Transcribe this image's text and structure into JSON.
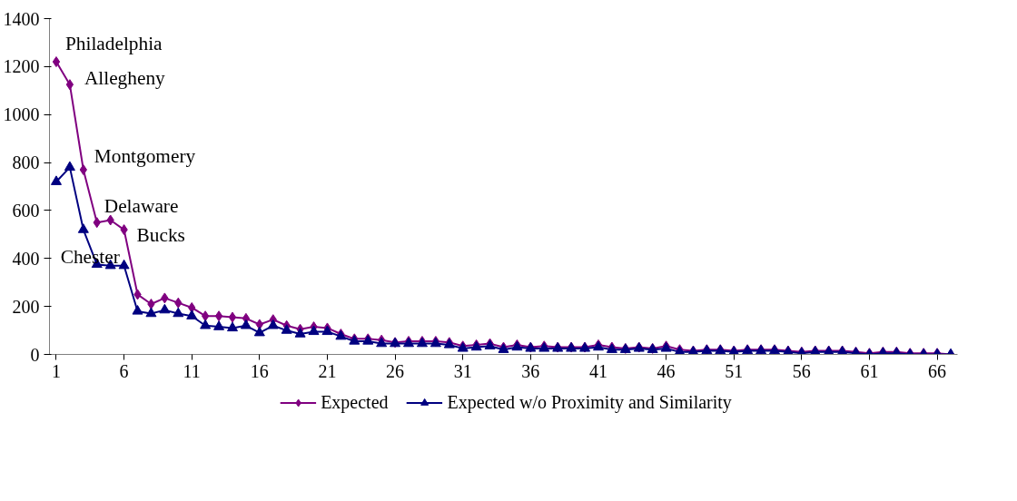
{
  "chart_data": {
    "type": "line",
    "x": [
      1,
      2,
      3,
      4,
      5,
      6,
      7,
      8,
      9,
      10,
      11,
      12,
      13,
      14,
      15,
      16,
      17,
      18,
      19,
      20,
      21,
      22,
      23,
      24,
      25,
      26,
      27,
      28,
      29,
      30,
      31,
      32,
      33,
      34,
      35,
      36,
      37,
      38,
      39,
      40,
      41,
      42,
      43,
      44,
      45,
      46,
      47,
      48,
      49,
      50,
      51,
      52,
      53,
      54,
      55,
      56,
      57,
      58,
      59,
      60,
      61,
      62,
      63,
      64,
      65,
      66,
      67
    ],
    "series": [
      {
        "name": "Expected",
        "color": "#800080",
        "marker": "diamond",
        "values": [
          1220,
          1125,
          770,
          550,
          560,
          520,
          250,
          210,
          235,
          215,
          195,
          160,
          160,
          155,
          150,
          125,
          145,
          120,
          105,
          115,
          110,
          85,
          65,
          65,
          60,
          50,
          55,
          55,
          55,
          50,
          35,
          40,
          45,
          30,
          40,
          30,
          35,
          30,
          30,
          30,
          40,
          30,
          25,
          30,
          25,
          35,
          20,
          15,
          20,
          20,
          15,
          20,
          20,
          20,
          15,
          10,
          15,
          15,
          15,
          10,
          5,
          10,
          10,
          5,
          5,
          5,
          0
        ]
      },
      {
        "name": "Expected w/o Proximity and Similarity",
        "color": "#000080",
        "marker": "triangle",
        "values": [
          720,
          780,
          520,
          375,
          370,
          370,
          180,
          170,
          185,
          170,
          160,
          120,
          115,
          110,
          120,
          90,
          120,
          100,
          85,
          95,
          95,
          75,
          55,
          55,
          45,
          45,
          45,
          45,
          45,
          40,
          25,
          30,
          35,
          20,
          30,
          25,
          25,
          25,
          25,
          25,
          30,
          20,
          20,
          25,
          20,
          25,
          10,
          10,
          15,
          15,
          10,
          15,
          15,
          15,
          10,
          5,
          10,
          10,
          10,
          5,
          0,
          5,
          5,
          0,
          0,
          0,
          0
        ]
      }
    ],
    "annotations": [
      {
        "text": "Philadelphia",
        "x": 1,
        "y": 1220
      },
      {
        "text": "Allegheny",
        "x": 2,
        "y": 1125
      },
      {
        "text": "Montgomery",
        "x": 3,
        "y": 770
      },
      {
        "text": "Delaware",
        "x": 4,
        "y": 550
      },
      {
        "text": "Chester",
        "x": 5,
        "y": 560
      },
      {
        "text": "Bucks",
        "x": 6,
        "y": 520
      }
    ],
    "xlim": [
      0.5,
      67.5
    ],
    "xticks": [
      1,
      6,
      11,
      16,
      21,
      26,
      31,
      36,
      41,
      46,
      51,
      56,
      61,
      66
    ],
    "ylim": [
      0,
      1400
    ],
    "yticks": [
      0,
      200,
      400,
      600,
      800,
      1000,
      1200,
      1400
    ],
    "grid": false,
    "legend": "bottom",
    "line_style": "solid"
  }
}
